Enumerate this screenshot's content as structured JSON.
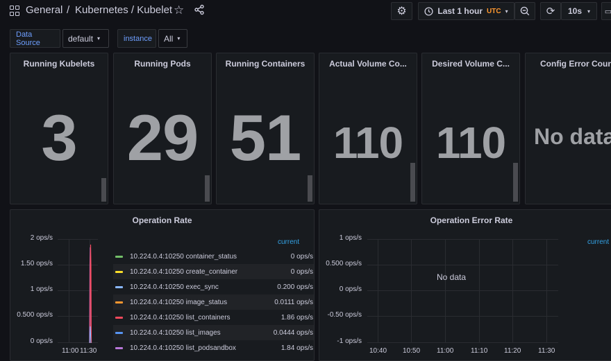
{
  "header": {
    "breadcrumb_folder": "General",
    "breadcrumb_sep": "/",
    "breadcrumb_dashboard": "Kubernetes / Kubelet",
    "time_range": "Last 1 hour",
    "timezone": "UTC",
    "refresh_interval": "10s"
  },
  "variables": [
    {
      "label": "Data Source",
      "value": "default"
    },
    {
      "label": "instance",
      "value": "All"
    }
  ],
  "stats": [
    {
      "title": "Running Kubelets",
      "value": "3"
    },
    {
      "title": "Running Pods",
      "value": "29"
    },
    {
      "title": "Running Containers",
      "value": "51"
    },
    {
      "title": "Actual Volume Co...",
      "value": "110"
    },
    {
      "title": "Desired Volume C...",
      "value": "110"
    },
    {
      "title": "Config Error Count",
      "value": "No data"
    }
  ],
  "operation_rate": {
    "title": "Operation Rate",
    "legend_header": "current",
    "y_ticks": [
      "2 ops/s",
      "1.50 ops/s",
      "1 ops/s",
      "0.500 ops/s",
      "0 ops/s"
    ],
    "x_ticks": [
      "11:00",
      "11:30"
    ],
    "legend": [
      {
        "name": "10.224.0.4:10250 container_status",
        "value": "0 ops/s",
        "color": "#73bf69"
      },
      {
        "name": "10.224.0.4:10250 create_container",
        "value": "0 ops/s",
        "color": "#fade2a"
      },
      {
        "name": "10.224.0.4:10250 exec_sync",
        "value": "0.200 ops/s",
        "color": "#8ab8ff"
      },
      {
        "name": "10.224.0.4:10250 image_status",
        "value": "0.0111 ops/s",
        "color": "#ff9830"
      },
      {
        "name": "10.224.0.4:10250 list_containers",
        "value": "1.86 ops/s",
        "color": "#f2495c"
      },
      {
        "name": "10.224.0.4:10250 list_images",
        "value": "0.0444 ops/s",
        "color": "#5794f2"
      },
      {
        "name": "10.224.0.4:10250 list_podsandbox",
        "value": "1.84 ops/s",
        "color": "#b877d9"
      }
    ]
  },
  "operation_error_rate": {
    "title": "Operation Error Rate",
    "legend_header": "current",
    "no_data": "No data",
    "y_ticks": [
      "1 ops/s",
      "0.500 ops/s",
      "0 ops/s",
      "-0.50 ops/s",
      "-1 ops/s"
    ],
    "x_ticks": [
      "10:40",
      "10:50",
      "11:00",
      "11:10",
      "11:20",
      "11:30"
    ]
  },
  "colors": {
    "background": "#111217",
    "panel": "#181b1f",
    "accent_blue": "#33a2e5",
    "utc_orange": "#ff9830"
  }
}
